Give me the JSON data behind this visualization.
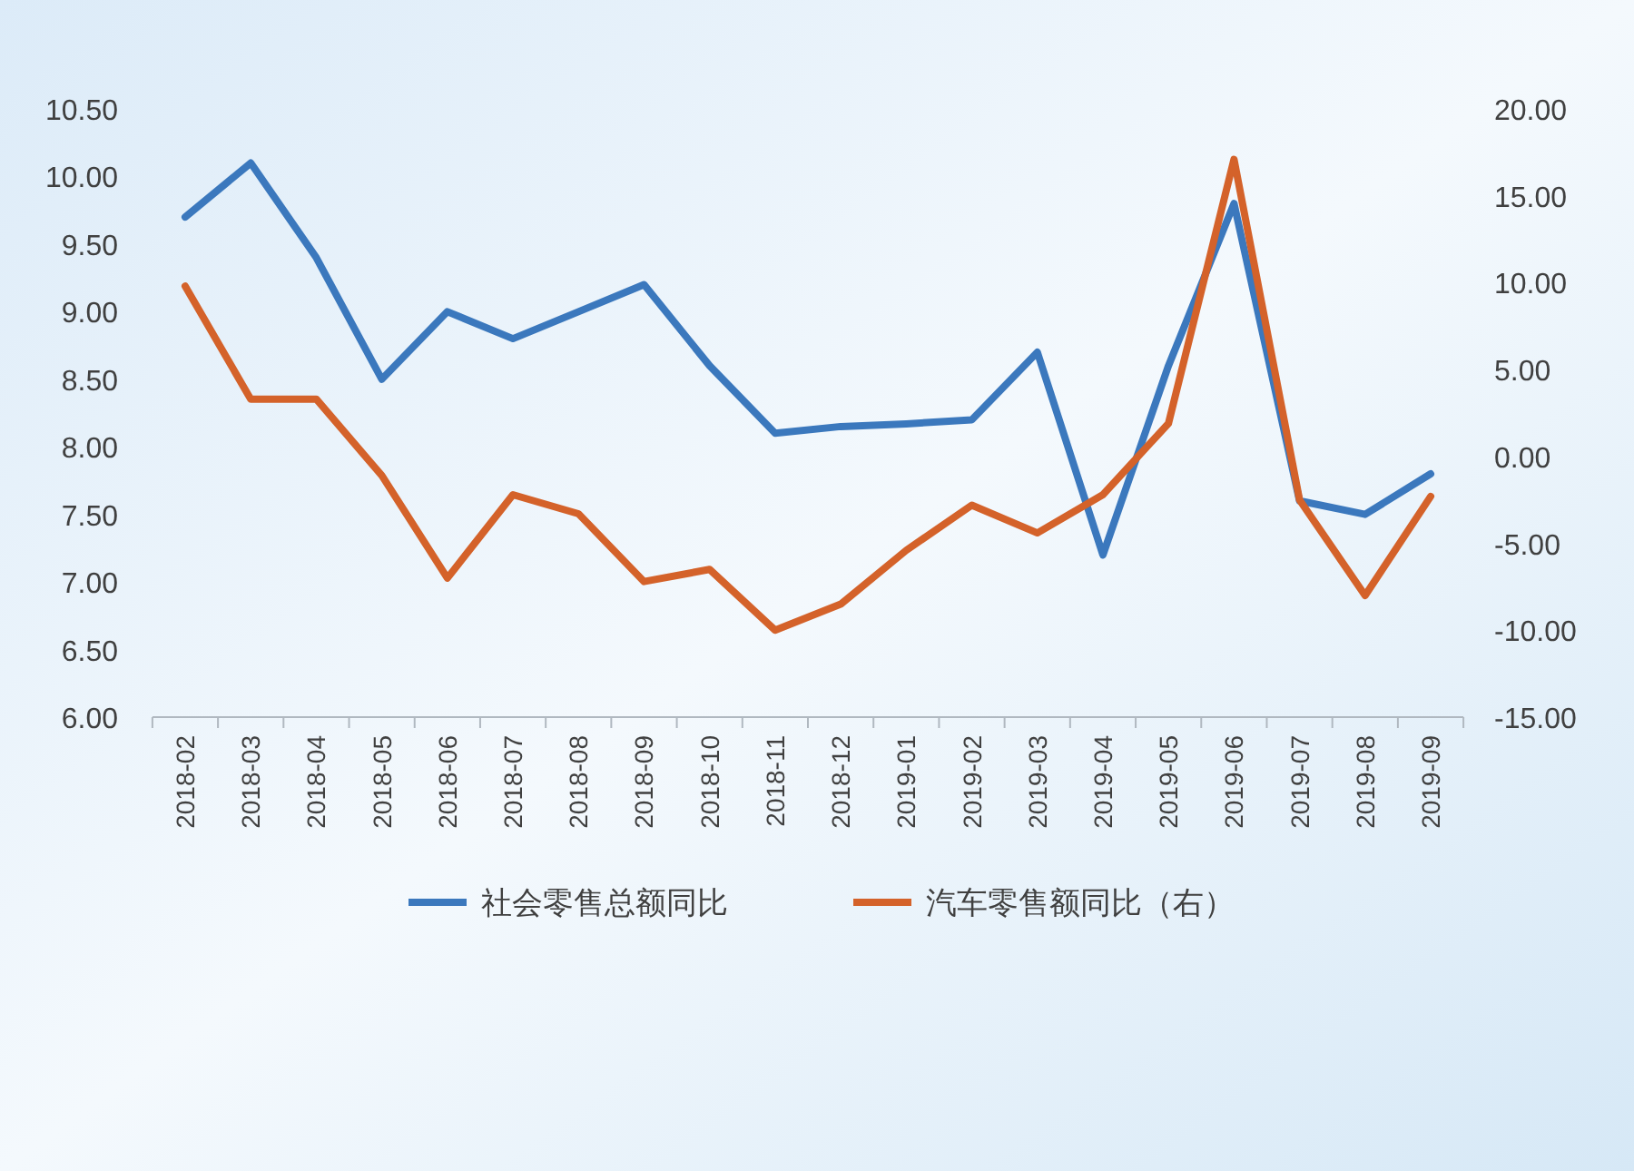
{
  "chart_data": {
    "type": "line",
    "categories": [
      "2018-02",
      "2018-03",
      "2018-04",
      "2018-05",
      "2018-06",
      "2018-07",
      "2018-08",
      "2018-09",
      "2018-10",
      "2018-11",
      "2018-12",
      "2019-01",
      "2019-02",
      "2019-03",
      "2019-04",
      "2019-05",
      "2019-06",
      "2019-07",
      "2019-08",
      "2019-09"
    ],
    "series": [
      {
        "name": "社会零售总额同比",
        "color": "#3b78bd",
        "values": [
          9.7,
          10.1,
          9.4,
          8.5,
          9.0,
          8.8,
          9.0,
          9.2,
          8.6,
          8.1,
          8.15,
          8.17,
          8.2,
          8.7,
          7.2,
          8.6,
          9.8,
          7.6,
          7.5,
          7.8
        ]
      },
      {
        "name": "汽车零售额同比（右）",
        "color": "#d4622a",
        "axis": "y2",
        "values": [
          9.8,
          3.3,
          3.3,
          -1.1,
          -7.0,
          -2.2,
          -3.3,
          -7.2,
          -6.5,
          -10.0,
          -8.5,
          -5.4,
          -2.8,
          -4.4,
          -2.2,
          1.9,
          17.1,
          -2.5,
          -8.0,
          -2.3
        ]
      }
    ],
    "ylim": [
      6,
      10.5
    ],
    "yticks": [
      {
        "value": 6,
        "label": "6.00"
      },
      {
        "value": 6.5,
        "label": "6.50"
      },
      {
        "value": 7,
        "label": "7.00"
      },
      {
        "value": 7.5,
        "label": "7.50"
      },
      {
        "value": 8,
        "label": "8.00"
      },
      {
        "value": 8.5,
        "label": "8.50"
      },
      {
        "value": 9,
        "label": "9.00"
      },
      {
        "value": 9.5,
        "label": "9.50"
      },
      {
        "value": 10,
        "label": "10.00"
      },
      {
        "value": 10.5,
        "label": "10.50"
      }
    ],
    "y2lim": [
      -15,
      20
    ],
    "y2ticks": [
      {
        "value": -15,
        "label": "-15.00"
      },
      {
        "value": -10,
        "label": "-10.00"
      },
      {
        "value": -5,
        "label": "-5.00"
      },
      {
        "value": 0,
        "label": "0.00"
      },
      {
        "value": 5,
        "label": "5.00"
      },
      {
        "value": 10,
        "label": "10.00"
      },
      {
        "value": 15,
        "label": "15.00"
      },
      {
        "value": 20,
        "label": "20.00"
      }
    ],
    "grid": false,
    "legend": "bottom",
    "marker": "none",
    "line_style": "solid"
  }
}
